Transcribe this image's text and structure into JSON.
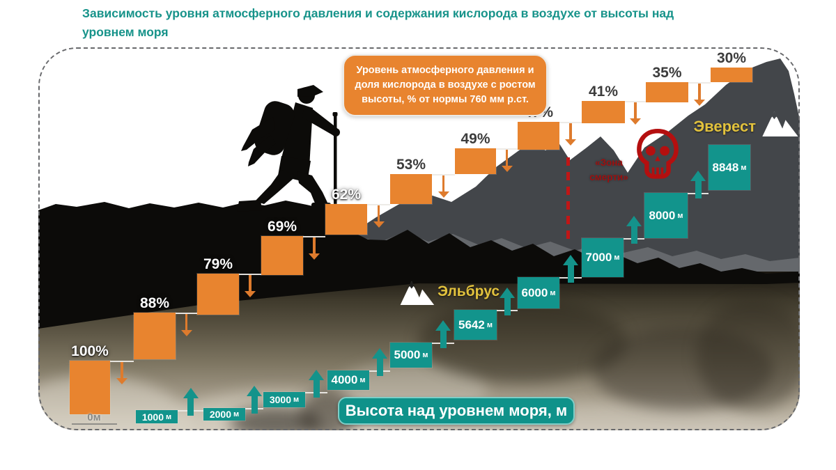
{
  "title": "Зависимость уровня атмосферного давления и содержания кислорода в воздухе от высоты над уровнем моря",
  "callout": "Уровень атмосферного давления и доля кислорода в воздухе с ростом высоты, % от нормы 760 мм р.ст.",
  "axis_label": "Высота над уровнем моря, м",
  "sea_level_label": "0м",
  "death_zone": {
    "line1": "«Зона",
    "line2": "смерти»"
  },
  "peaks": {
    "elbrus": "Эльбрус",
    "everest": "Эверест"
  },
  "colors": {
    "title_teal": "#17938A",
    "orange": "#E8842F",
    "teal": "#12948C",
    "gold": "#E2C23D",
    "death_red": "#B01010"
  },
  "chart_data": {
    "type": "bar",
    "title": "Зависимость уровня атмосферного давления и содержания кислорода в воздухе от высоты над уровнем моря",
    "xlabel": "Высота над уровнем моря, м",
    "ylabel": "Уровень атмосферного давления и доля кислорода в воздухе, % от нормы 760 мм р.ст.",
    "x": [
      0,
      1000,
      2000,
      3000,
      4000,
      5000,
      5642,
      6000,
      7000,
      8000,
      8848
    ],
    "series": [
      {
        "name": "Давление / доля кислорода, % от нормы 760 мм р.ст.",
        "values": [
          100,
          88,
          79,
          69,
          62,
          53,
          49,
          47,
          41,
          35,
          30
        ]
      }
    ],
    "pressure_labels": [
      "100%",
      "88%",
      "79%",
      "69%",
      "62%",
      "53%",
      "49%",
      "47%",
      "41%",
      "35%",
      "30%"
    ],
    "altitude_labels": [
      {
        "value": "1000",
        "unit": "м"
      },
      {
        "value": "2000",
        "unit": "м"
      },
      {
        "value": "3000",
        "unit": "м"
      },
      {
        "value": "4000",
        "unit": "м"
      },
      {
        "value": "5000",
        "unit": "м"
      },
      {
        "value": "5642",
        "unit": "м"
      },
      {
        "value": "6000",
        "unit": "м"
      },
      {
        "value": "7000",
        "unit": "м"
      },
      {
        "value": "8000",
        "unit": "м"
      },
      {
        "value": "8848",
        "unit": "м"
      }
    ],
    "annotations": [
      "«Зона смерти»",
      "Эльбрус",
      "Эверест"
    ],
    "legend_position": "none",
    "grid": false
  }
}
